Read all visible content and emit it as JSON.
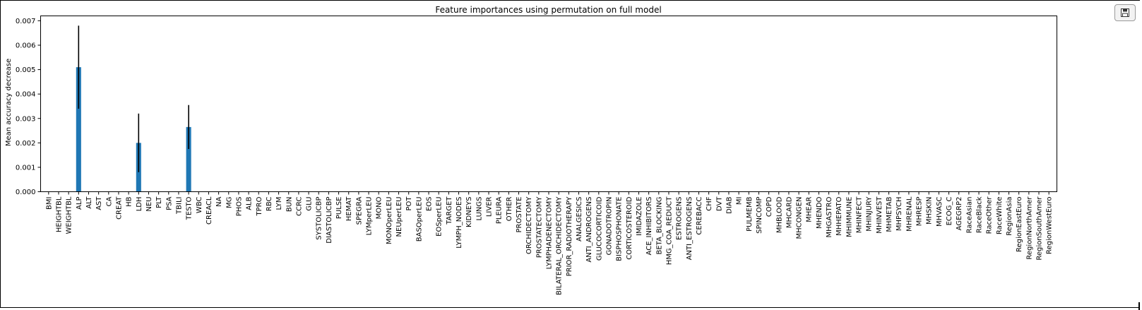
{
  "toolbar": {
    "save_icon": "floppy-disk-icon"
  },
  "colors": {
    "bar": "#1f77b4",
    "error_bar": "#000000"
  },
  "chart_data": {
    "type": "bar",
    "title": "Feature importances using permutation on full model",
    "xlabel": "",
    "ylabel": "Mean accuracy decrease",
    "ylim": [
      0,
      0.0072
    ],
    "yticks": [
      "0.000",
      "0.001",
      "0.002",
      "0.003",
      "0.004",
      "0.005",
      "0.006",
      "0.007"
    ],
    "grid": false,
    "categories": [
      "BMI",
      "HEIGHTBL",
      "WEIGHTBL",
      "ALP",
      "ALT",
      "AST",
      "CA",
      "CREAT",
      "HB",
      "LDH",
      "NEU",
      "PLT",
      "PSA",
      "TBILI",
      "TESTO",
      "WBC",
      "CREACL",
      "NA",
      "MG",
      "PHOS",
      "ALB",
      "TPRO",
      "RBC",
      "LYM",
      "BUN",
      "CCRC",
      "GLU",
      "SYSTOLICBP",
      "DIASTOLICBP",
      "PULSE",
      "HEMAT",
      "SPEGRA",
      "LYMperLEU",
      "MONO",
      "MONOperLEU",
      "NEUperLEU",
      "POT",
      "BASOperLEU",
      "EOS",
      "EOSperLEU",
      "TARGET",
      "LYMPH_NODES",
      "KIDNEYS",
      "LUNGS",
      "LIVER",
      "PLEURA",
      "OTHER",
      "PROSTATE",
      "ORCHIDECTOMY",
      "PROSTATECTOMY",
      "LYMPHADENECTOMY",
      "BILATERAL_ORCHIDECTOMY",
      "PRIOR_RADIOTHERAPY",
      "ANALGESICS",
      "ANTI_ANDROGENS",
      "GLUCOCORTICOID",
      "GONADOTROPIN",
      "BISPHOSPHONATE",
      "CORTICOSTEROID",
      "IMIDAZOLE",
      "ACE_INHIBITORS",
      "BETA_BLOCKING",
      "HMG_COA_REDUCT",
      "ESTROGENS",
      "ANTI_ESTROGENS",
      "CEREBACC",
      "CHF",
      "DVT",
      "DIAB",
      "MI",
      "PULMEMB",
      "SPINCOMP",
      "COPD",
      "MHBLOOD",
      "MHCARD",
      "MHCONGEN",
      "MHEAR",
      "MHENDO",
      "MHGASTRO",
      "MHHEPATO",
      "MHIMMUNE",
      "MHINFECT",
      "MHINJURY",
      "MHINVEST",
      "MHMETAB",
      "MHPSYCH",
      "MHRENAL",
      "MHRESP",
      "MHSKIN",
      "MHVASC",
      "ECOG_C",
      "AGEGRP2",
      "RaceAsian",
      "RaceBlack",
      "RaceOther",
      "RaceWhite",
      "RegionAsia",
      "RegionEastEuro",
      "RegionNorthAmer",
      "RegionSouthAmer",
      "RegionWestEuro"
    ],
    "values": [
      0,
      0,
      0,
      0.0051,
      0,
      0,
      0,
      0,
      0,
      0.002,
      0,
      0,
      0,
      0,
      0.00265,
      0,
      0,
      0,
      0,
      0,
      0,
      0,
      0,
      0,
      0,
      0,
      0,
      0,
      0,
      0,
      0,
      0,
      0,
      0,
      0,
      0,
      0,
      0,
      0,
      0,
      0,
      0,
      0,
      0,
      0,
      0,
      0,
      0,
      0,
      0,
      0,
      0,
      0,
      0,
      0,
      0,
      0,
      0,
      0,
      0,
      0,
      0,
      0,
      0,
      0,
      0,
      0,
      0,
      0,
      0,
      0,
      0,
      0,
      0,
      0,
      0,
      0,
      0,
      0,
      0,
      0,
      0,
      0,
      0,
      0,
      0,
      0,
      0,
      0,
      0,
      0,
      0,
      0,
      0,
      0,
      0,
      0,
      0,
      0,
      0,
      0
    ],
    "errors": [
      0,
      0,
      0,
      0.0017,
      0,
      0,
      0,
      0,
      0,
      0.0012,
      0,
      0,
      0,
      0,
      0.0009,
      0,
      0,
      0,
      0,
      0,
      0,
      0,
      0,
      0,
      0,
      0,
      0,
      0,
      0,
      0,
      0,
      0,
      0,
      0,
      0,
      0,
      0,
      0,
      0,
      0,
      0,
      0,
      0,
      0,
      0,
      0,
      0,
      0,
      0,
      0,
      0,
      0,
      0,
      0,
      0,
      0,
      0,
      0,
      0,
      0,
      0,
      0,
      0,
      0,
      0,
      0,
      0,
      0,
      0,
      0,
      0,
      0,
      0,
      0,
      0,
      0,
      0,
      0,
      0,
      0,
      0,
      0,
      0,
      0,
      0,
      0,
      0,
      0,
      0,
      0,
      0,
      0,
      0,
      0,
      0,
      0,
      0,
      0,
      0,
      0,
      0
    ]
  }
}
